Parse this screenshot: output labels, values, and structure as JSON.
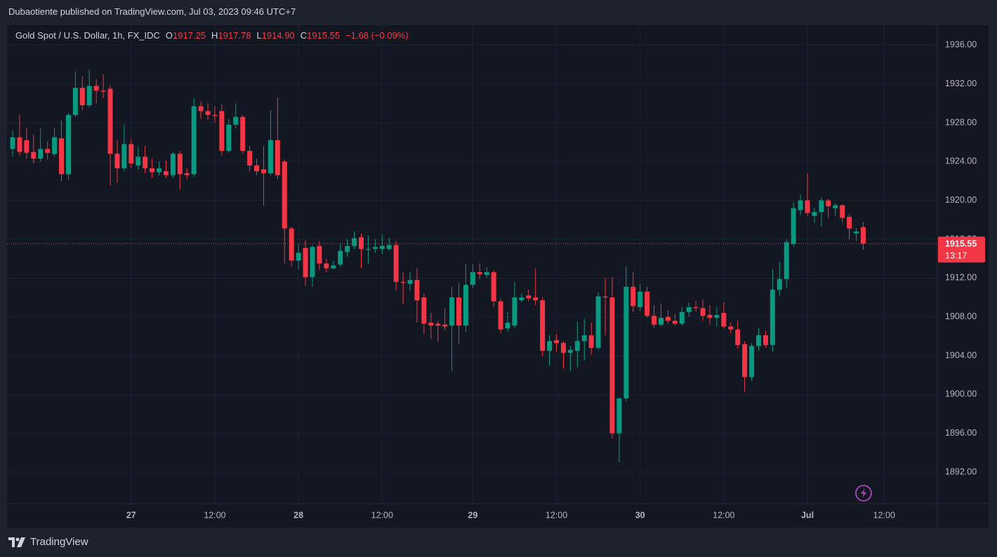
{
  "header": {
    "text": "Dubaotiente published on TradingView.com, Jul 03, 2023 09:46 UTC+7"
  },
  "footer": {
    "brand": "TradingView"
  },
  "chart_data": {
    "type": "candlestick",
    "title": "Gold Spot / U.S. Dollar, 1h, FX_IDC",
    "legend": {
      "open_label": "O",
      "open": 1917.25,
      "high_label": "H",
      "high": 1917.78,
      "low_label": "L",
      "low": {
        "value": 1914.9,
        "label": "1914.90"
      },
      "close_label": "C",
      "close": 1915.55,
      "change": "−1.68 (−0.09%)"
    },
    "categories": [
      null,
      null,
      null,
      null,
      null,
      null,
      null,
      null,
      null,
      null,
      null,
      null,
      null,
      null,
      null,
      null,
      null,
      "27",
      null,
      null,
      null,
      null,
      null,
      null,
      null,
      null,
      null,
      null,
      null,
      "12:00",
      null,
      null,
      null,
      null,
      null,
      null,
      null,
      null,
      null,
      null,
      null,
      "28",
      null,
      null,
      null,
      null,
      null,
      null,
      null,
      null,
      null,
      null,
      null,
      "12:00",
      null,
      null,
      null,
      null,
      null,
      null,
      null,
      null,
      null,
      null,
      null,
      null,
      "29",
      null,
      null,
      null,
      null,
      null,
      null,
      null,
      null,
      null,
      null,
      null,
      "12:00",
      null,
      null,
      null,
      null,
      null,
      null,
      null,
      null,
      null,
      null,
      null,
      "30",
      null,
      null,
      null,
      null,
      null,
      null,
      null,
      null,
      null,
      null,
      null,
      "12:00",
      null,
      null,
      null,
      null,
      null,
      null,
      null,
      null,
      null,
      null,
      null,
      "Jul",
      null,
      null,
      null,
      null,
      null,
      null,
      null,
      null,
      null,
      null,
      "12:00"
    ],
    "open": [
      1925.3,
      1926.5,
      1926.2,
      1925.0,
      1924.3,
      1925.3,
      1924.8,
      1926.4,
      1922.7,
      1928.8,
      1931.6,
      1929.8,
      1931.8,
      1931.3,
      1931.5,
      1924.8,
      1923.3,
      1925.8,
      1923.6,
      1924.5,
      1923.3,
      1922.9,
      1923.0,
      1922.6,
      1924.8,
      1922.8,
      1922.7,
      1929.7,
      1929.2,
      1928.8,
      1929.2,
      1925.1,
      1927.8,
      1928.6,
      1925.1,
      1923.6,
      1923.2,
      1922.8,
      1926.2,
      1924.0,
      1917.1,
      1913.8,
      1915.1,
      1912.1,
      1915.3,
      1913.5,
      1913.0,
      1913.4,
      1914.7,
      1915.3,
      1916.2,
      1914.9,
      1915.0,
      1915.0,
      1915.0,
      1915.4,
      1911.6,
      1911.4,
      1911.8,
      1910.0,
      1907.4,
      1907.3,
      1907.2,
      1907.1,
      1910.0,
      1907.1,
      1911.3,
      1912.6,
      1912.3,
      1912.6,
      1909.6,
      1906.8,
      1907.1,
      1909.7,
      1910.2,
      1910.0,
      1909.7,
      1904.5,
      1905.6,
      1905.3,
      1904.3,
      1904.5,
      1905.5,
      1906.1,
      1904.8,
      1910.1,
      1910.0,
      1896.0,
      1899.6,
      1911.1,
      1909.0,
      1910.6,
      1908.1,
      1907.2,
      1908.0,
      1907.6,
      1907.3,
      1908.5,
      1909.0,
      1908.9,
      1908.2,
      1907.9,
      1908.4,
      1907.0,
      1906.7,
      1905.2,
      1901.8,
      1905.0,
      1906.1,
      1905.1,
      1910.8,
      1911.9,
      1915.5,
      1919.0,
      1920.0,
      1918.4,
      1918.8,
      1920.0,
      1919.2,
      1919.5,
      1918.3,
      1916.6,
      1917.25,
      null,
      null,
      null
    ],
    "high": [
      1927.2,
      1928.8,
      1927.5,
      1926.8,
      1927.4,
      1926.1,
      1927.5,
      1928.2,
      1929.0,
      1933.3,
      1932.8,
      1933.5,
      1932.5,
      1933.0,
      1931.9,
      1926.2,
      1927.8,
      1926.3,
      1925.5,
      1925.6,
      1924.3,
      1924.0,
      1924.1,
      1925.0,
      1925.1,
      1923.3,
      1930.5,
      1930.2,
      1930.0,
      1929.7,
      1929.9,
      1928.4,
      1930.0,
      1928.8,
      1925.6,
      1924.3,
      1925.6,
      1929.3,
      1930.6,
      1924.2,
      1917.3,
      1915.5,
      1915.9,
      1915.4,
      1915.8,
      1914.0,
      1913.8,
      1915.6,
      1916.0,
      1916.8,
      1916.6,
      1916.4,
      1916.0,
      1916.5,
      1916.2,
      1915.8,
      1912.6,
      1912.6,
      1913.0,
      1910.4,
      1908.4,
      1907.6,
      1908.9,
      1911.1,
      1911.5,
      1913.4,
      1913.4,
      1913.5,
      1913.1,
      1912.8,
      1909.9,
      1908.5,
      1911.6,
      1910.4,
      1910.8,
      1913.0,
      1910.0,
      1906.1,
      1906.2,
      1905.5,
      1905.0,
      1907.5,
      1907.8,
      1907.4,
      1910.5,
      1912.0,
      1912.1,
      1899.7,
      1913.2,
      1912.6,
      1911.4,
      1911.1,
      1909.2,
      1909.4,
      1908.7,
      1908.3,
      1909.0,
      1909.5,
      1909.6,
      1909.8,
      1909.2,
      1909.0,
      1909.5,
      1907.4,
      1907.6,
      1905.5,
      1905.3,
      1906.8,
      1906.6,
      1912.9,
      1913.7,
      1916.0,
      1919.8,
      1920.6,
      1922.8,
      1919.2,
      1920.3,
      1920.2,
      1919.7,
      1919.6,
      1918.6,
      1917.2,
      1917.78,
      null,
      null,
      null
    ],
    "low": [
      1924.5,
      1924.6,
      1924.3,
      1923.8,
      1924.0,
      1924.2,
      1924.5,
      1922.0,
      1922.1,
      1928.6,
      1929.3,
      1929.6,
      1930.0,
      1930.5,
      1921.5,
      1921.8,
      1923.0,
      1923.3,
      1923.2,
      1922.8,
      1922.3,
      1922.6,
      1922.3,
      1922.3,
      1921.1,
      1922.2,
      1922.4,
      1928.4,
      1928.3,
      1928.0,
      1924.6,
      1924.9,
      1927.4,
      1924.8,
      1923.0,
      1922.6,
      1919.5,
      1922.6,
      1922.2,
      1913.5,
      1913.2,
      1912.9,
      1911.2,
      1911.1,
      1912.8,
      1912.6,
      1912.9,
      1913.2,
      1914.2,
      1915.0,
      1913.0,
      1913.5,
      1914.6,
      1914.5,
      1914.8,
      1910.7,
      1909.3,
      1910.7,
      1907.4,
      1906.2,
      1905.7,
      1905.4,
      1906.6,
      1902.4,
      1905.2,
      1906.5,
      1911.0,
      1911.9,
      1912.0,
      1909.0,
      1906.3,
      1906.5,
      1906.8,
      1909.5,
      1909.6,
      1909.2,
      1903.9,
      1903.0,
      1904.4,
      1902.7,
      1902.4,
      1902.8,
      1903.5,
      1904.1,
      1904.6,
      1906.1,
      1895.5,
      1893.0,
      1899.3,
      1908.5,
      1908.6,
      1907.9,
      1906.9,
      1907.0,
      1907.3,
      1907.1,
      1907.1,
      1908.0,
      1908.5,
      1907.6,
      1907.2,
      1907.0,
      1906.8,
      1906.3,
      1904.7,
      1900.3,
      1901.4,
      1904.5,
      1904.8,
      1904.4,
      1910.2,
      1911.0,
      1915.2,
      1918.5,
      1918.4,
      1917.7,
      1917.3,
      1918.2,
      1918.4,
      1917.7,
      1916.0,
      1915.8,
      1914.9,
      null,
      null,
      null
    ],
    "close": [
      1926.5,
      1925.0,
      1924.9,
      1924.3,
      1925.3,
      1924.9,
      1926.5,
      1922.7,
      1928.8,
      1931.6,
      1929.8,
      1931.8,
      1931.3,
      1931.2,
      1924.8,
      1923.3,
      1925.8,
      1923.8,
      1924.5,
      1923.3,
      1922.9,
      1923.3,
      1922.6,
      1924.8,
      1922.7,
      1922.6,
      1929.7,
      1929.2,
      1928.8,
      1928.7,
      1925.1,
      1927.8,
      1928.6,
      1925.1,
      1923.6,
      1923.0,
      1922.8,
      1926.2,
      1922.6,
      1917.1,
      1913.8,
      1914.6,
      1912.1,
      1915.2,
      1913.5,
      1913.0,
      1913.3,
      1914.8,
      1915.3,
      1916.1,
      1915.0,
      1915.0,
      1915.2,
      1915.3,
      1915.4,
      1911.6,
      1911.5,
      1911.8,
      1909.7,
      1907.3,
      1907.1,
      1907.1,
      1907.0,
      1910.0,
      1907.1,
      1911.3,
      1912.6,
      1912.4,
      1912.6,
      1909.6,
      1906.7,
      1907.4,
      1910.0,
      1910.0,
      1909.9,
      1909.7,
      1904.5,
      1905.5,
      1905.3,
      1904.3,
      1904.6,
      1905.5,
      1906.1,
      1904.8,
      1910.1,
      1910.0,
      1896.0,
      1899.6,
      1911.1,
      1909.1,
      1910.6,
      1908.1,
      1907.2,
      1907.9,
      1907.6,
      1907.3,
      1908.5,
      1909.0,
      1908.9,
      1908.1,
      1907.9,
      1908.2,
      1907.0,
      1906.7,
      1905.1,
      1901.8,
      1905.0,
      1906.1,
      1905.1,
      1910.8,
      1911.9,
      1915.7,
      1919.2,
      1920.0,
      1918.7,
      1918.8,
      1920.0,
      1919.4,
      1919.5,
      1918.2,
      1917.1,
      1916.8,
      1915.55,
      null,
      null,
      null
    ],
    "up_color": "#089981",
    "down_color": "#f23645",
    "ylim": [
      1888.75,
      1937.9
    ],
    "yticks": [
      {
        "value": 1892,
        "label": "1892.00"
      },
      {
        "value": 1896,
        "label": "1896.00"
      },
      {
        "value": 1900,
        "label": "1900.00"
      },
      {
        "value": 1904,
        "label": "1904.00"
      },
      {
        "value": 1908,
        "label": "1908.00"
      },
      {
        "value": 1912,
        "label": "1912.00"
      },
      {
        "value": 1916,
        "label": "1916.00"
      },
      {
        "value": 1920,
        "label": "1920.00"
      },
      {
        "value": 1924,
        "label": "1924.00"
      },
      {
        "value": 1928,
        "label": "1928.00"
      },
      {
        "value": 1932,
        "label": "1932.00"
      },
      {
        "value": 1936,
        "label": "1936.00"
      }
    ],
    "grid": true,
    "last_price": 1915.55,
    "countdown": "13:17"
  }
}
